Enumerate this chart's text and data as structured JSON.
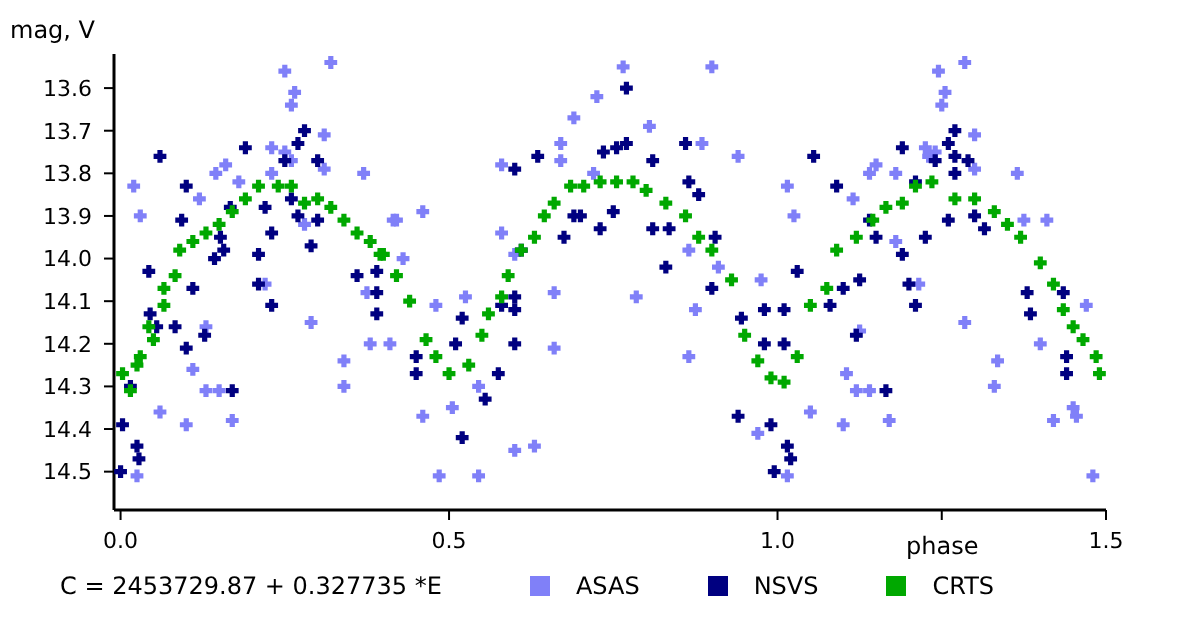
{
  "chart_data": {
    "type": "scatter",
    "xlabel": "phase",
    "ylabel": "mag, V",
    "annotations": [
      "C = 2453729.87 + 0.327735 *E"
    ],
    "xlim": [
      -0.01,
      1.5
    ],
    "xticks": [
      {
        "value": 0,
        "label": "0.0"
      },
      {
        "value": 0.5,
        "label": "0.5"
      },
      {
        "value": 1,
        "label": "1.0"
      },
      {
        "value": 1.25,
        "label": null
      },
      {
        "value": 1.5,
        "label": "1.5"
      }
    ],
    "ylim": [
      14.59,
      13.52
    ],
    "yticks": [
      13.6,
      13.7,
      13.8,
      13.9,
      {
        "value": 14,
        "label": "14.0"
      },
      14.1,
      14.2,
      14.3,
      14.4,
      14.5
    ],
    "legend": "bottom",
    "marker": "cross",
    "series": [
      {
        "name": "ASAS",
        "color": "#8080f8",
        "x": [
          0.02,
          0.12,
          0.17,
          0.15,
          0.11,
          0.06,
          0.13,
          0.16,
          0.145,
          0.18,
          0.23,
          0.23,
          0.25,
          0.26,
          0.26,
          0.31,
          0.31,
          0.37,
          0.22,
          0.29,
          0.34,
          0.375,
          0.38,
          0.42,
          0.28,
          0.25,
          0.32,
          0.265,
          0.03,
          0.025,
          0.1,
          0.13,
          0.34,
          0.415,
          0.43,
          0.41,
          0.48,
          0.46,
          0.485,
          0.5,
          0.525,
          0.545,
          0.58,
          0.58,
          0.6,
          0.66,
          0.66,
          0.67,
          0.67,
          0.725,
          0.72,
          0.805,
          0.785,
          0.865,
          0.865,
          0.875,
          0.91,
          0.94,
          0.975,
          0.765,
          0.9,
          0.69,
          0.63,
          0.6,
          0.545,
          0.505,
          0.46,
          0.885,
          0.97,
          1.015,
          1.115,
          1.05,
          1.105,
          1.125,
          1.14,
          1.17,
          1.14,
          1.15,
          1.18,
          1.225,
          1.25,
          1.24,
          1.23,
          1.285,
          1.3,
          1.3,
          1.215,
          1.365,
          1.335,
          1.375,
          1.4,
          1.41,
          1.455,
          1.47,
          1.48,
          1.18,
          1.245,
          1.285,
          1.255,
          1.025,
          1.015,
          1.1,
          1.12,
          1.33,
          1.42,
          1.45
        ],
        "values": [
          13.83,
          13.86,
          14.38,
          14.31,
          14.26,
          14.36,
          14.16,
          13.78,
          13.8,
          13.82,
          13.8,
          13.74,
          13.75,
          13.64,
          13.77,
          13.71,
          13.79,
          13.8,
          14.06,
          14.15,
          14.24,
          14.08,
          14.2,
          13.91,
          13.92,
          13.56,
          13.54,
          13.61,
          13.9,
          14.51,
          14.39,
          14.31,
          14.3,
          13.91,
          14.0,
          14.2,
          14.11,
          14.37,
          14.51,
          null,
          14.09,
          14.3,
          13.78,
          13.94,
          13.99,
          14.08,
          14.21,
          13.73,
          13.77,
          13.62,
          13.8,
          13.69,
          14.09,
          14.23,
          13.98,
          14.12,
          14.02,
          13.76,
          14.05,
          13.55,
          13.55,
          13.67,
          14.44,
          14.45,
          14.51,
          14.35,
          13.89,
          13.73,
          14.41,
          13.83,
          13.86,
          14.36,
          14.27,
          14.17,
          14.31,
          14.38,
          13.8,
          13.78,
          13.8,
          13.74,
          13.64,
          13.75,
          13.76,
          14.15,
          13.71,
          13.79,
          14.06,
          13.8,
          14.24,
          13.91,
          14.2,
          13.91,
          14.37,
          14.11,
          14.51,
          13.96,
          13.56,
          13.54,
          13.61,
          13.9,
          14.51,
          14.39,
          14.31,
          14.3,
          14.38,
          14.35
        ]
      },
      {
        "name": "NSVS",
        "color": "#000080",
        "x": [
          0.003,
          0.015,
          0.043,
          0.045,
          0.055,
          0.083,
          0.093,
          0.11,
          0.128,
          0.143,
          0.152,
          0.157,
          0.167,
          0.19,
          0.21,
          0.21,
          0.22,
          0.23,
          0.25,
          0.26,
          0.27,
          0.27,
          0.3,
          0.3,
          0.36,
          0.39,
          0.39,
          0.39,
          0.06,
          0.1,
          0.23,
          0.28,
          0.29,
          0.025,
          0.028,
          0.0,
          0.1,
          0.17,
          0.45,
          0.45,
          0.51,
          0.52,
          0.58,
          0.6,
          0.6,
          0.6,
          0.61,
          0.675,
          0.69,
          0.7,
          0.73,
          0.735,
          0.755,
          0.77,
          0.77,
          0.75,
          0.81,
          0.81,
          0.86,
          0.865,
          0.88,
          0.905,
          0.9,
          0.945,
          0.98,
          0.98,
          0.94,
          0.99,
          0.635,
          0.6,
          0.835,
          0.83,
          0.52,
          0.555,
          0.575,
          0.995,
          1.03,
          1.01,
          1.01,
          1.1,
          1.08,
          1.12,
          1.125,
          1.14,
          1.15,
          1.165,
          1.19,
          1.19,
          1.2,
          1.225,
          1.21,
          1.24,
          1.26,
          1.27,
          1.27,
          1.26,
          1.29,
          1.3,
          1.315,
          1.38,
          1.385,
          1.435,
          1.44,
          1.44,
          1.055,
          1.09,
          1.21,
          1.27,
          1.165,
          1.015,
          1.02
        ],
        "values": [
          14.39,
          14.3,
          14.03,
          14.13,
          14.16,
          14.16,
          13.91,
          14.07,
          14.18,
          14.0,
          13.95,
          13.98,
          13.88,
          13.74,
          13.99,
          14.06,
          13.88,
          13.94,
          13.77,
          13.86,
          13.73,
          13.9,
          13.77,
          13.91,
          14.04,
          14.03,
          14.08,
          14.13,
          13.76,
          13.83,
          14.11,
          13.7,
          13.97,
          14.44,
          14.47,
          14.5,
          14.21,
          14.31,
          14.23,
          14.27,
          14.2,
          14.14,
          14.11,
          14.12,
          14.09,
          14.2,
          13.98,
          13.95,
          13.9,
          13.9,
          13.93,
          13.75,
          13.74,
          13.73,
          13.6,
          13.89,
          13.77,
          13.93,
          13.73,
          13.82,
          13.85,
          13.95,
          14.07,
          14.14,
          14.12,
          14.2,
          14.37,
          14.39,
          13.76,
          13.79,
          13.93,
          14.02,
          14.42,
          14.33,
          14.27,
          14.5,
          14.03,
          14.12,
          14.2,
          14.07,
          14.11,
          14.18,
          14.05,
          13.91,
          13.95,
          null,
          13.99,
          13.74,
          14.06,
          13.95,
          13.82,
          13.77,
          13.73,
          13.8,
          13.76,
          13.91,
          13.77,
          13.9,
          13.93,
          14.08,
          14.13,
          14.08,
          14.23,
          14.27,
          13.76,
          13.83,
          14.11,
          13.7,
          14.31,
          14.44,
          14.47
        ]
      },
      {
        "name": "CRTS",
        "color": "#00a800",
        "x": [
          0.003,
          0.015,
          0.025,
          0.03,
          0.05,
          0.043,
          0.066,
          0.066,
          0.083,
          0.09,
          0.11,
          0.13,
          0.15,
          0.17,
          0.19,
          0.21,
          0.24,
          0.26,
          0.28,
          0.3,
          0.32,
          0.34,
          0.36,
          0.38,
          0.4,
          0.42,
          0.395,
          0.44,
          0.465,
          0.48,
          0.5,
          0.53,
          0.55,
          0.56,
          0.58,
          0.59,
          0.61,
          0.63,
          0.645,
          0.66,
          0.685,
          0.705,
          0.73,
          0.755,
          0.78,
          0.8,
          0.83,
          0.86,
          0.88,
          0.9,
          0.93,
          0.95,
          0.97,
          0.99,
          1.01,
          1.03,
          1.05,
          1.075,
          1.09,
          1.12,
          1.145,
          1.165,
          1.19,
          1.21,
          1.235,
          1.27,
          1.3,
          1.33,
          1.35,
          1.37,
          1.4,
          1.42,
          1.435,
          1.45,
          1.465,
          1.485,
          1.49
        ],
        "values": [
          14.27,
          14.31,
          14.25,
          14.23,
          14.19,
          14.16,
          14.11,
          14.07,
          14.04,
          13.98,
          13.96,
          13.94,
          13.92,
          13.89,
          13.86,
          13.83,
          13.83,
          13.83,
          13.87,
          13.86,
          13.88,
          13.91,
          13.94,
          13.96,
          13.99,
          14.04,
          13.99,
          14.1,
          14.19,
          14.23,
          14.27,
          14.25,
          14.18,
          14.13,
          14.09,
          14.04,
          13.98,
          13.95,
          13.9,
          13.87,
          13.83,
          13.83,
          13.82,
          13.82,
          13.82,
          13.84,
          13.87,
          13.9,
          13.95,
          13.98,
          14.05,
          14.18,
          14.24,
          14.28,
          14.29,
          14.23,
          14.11,
          14.07,
          13.98,
          13.95,
          13.91,
          13.88,
          13.87,
          13.83,
          13.82,
          13.86,
          13.86,
          13.89,
          13.92,
          13.95,
          14.01,
          14.06,
          14.12,
          14.16,
          14.19,
          14.23,
          14.27
        ]
      }
    ]
  }
}
